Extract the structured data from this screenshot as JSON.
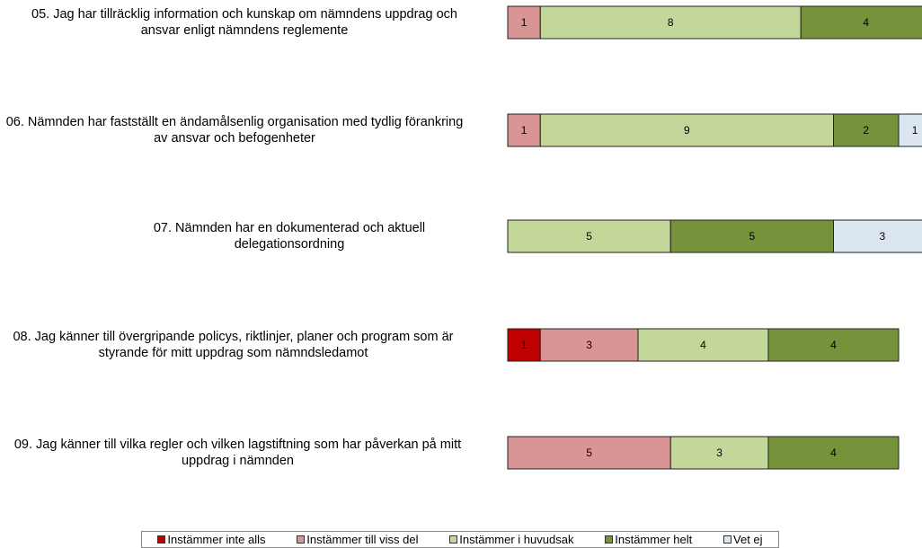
{
  "chart_data": {
    "type": "stacked-bar-horizontal",
    "categories": [
      "05. Jag har tillräcklig information och kunskap om nämndens uppdrag och ansvar enligt nämndens reglemente",
      "06. Nämnden har fastställt en ändamålsenlig organisation med tydlig förankring av ansvar och befogenheter",
      "07. Nämnden har en dokumenterad och aktuell delegationsordning",
      "08. Jag känner till övergripande policys, riktlinjer, planer och program som är styrande för mitt uppdrag som nämndsledamot",
      "09. Jag känner till vilka regler och vilken lagstiftning som har påverkan på mitt uppdrag i nämnden"
    ],
    "series": [
      {
        "name": "Instämmer inte alls",
        "color": "#c00000",
        "values": [
          null,
          null,
          null,
          1,
          null
        ]
      },
      {
        "name": "Instämmer till viss del",
        "color": "#d99594",
        "values": [
          1,
          1,
          null,
          3,
          5
        ]
      },
      {
        "name": "Instämmer i huvudsak",
        "color": "#c4d79b",
        "values": [
          8,
          9,
          5,
          4,
          3
        ]
      },
      {
        "name": "Instämmer helt",
        "color": "#76933c",
        "values": [
          4,
          2,
          5,
          4,
          4
        ]
      },
      {
        "name": "Vet ej",
        "color": "#dce6f1",
        "values": [
          null,
          1,
          3,
          null,
          null
        ]
      }
    ],
    "legend": "bottom"
  }
}
